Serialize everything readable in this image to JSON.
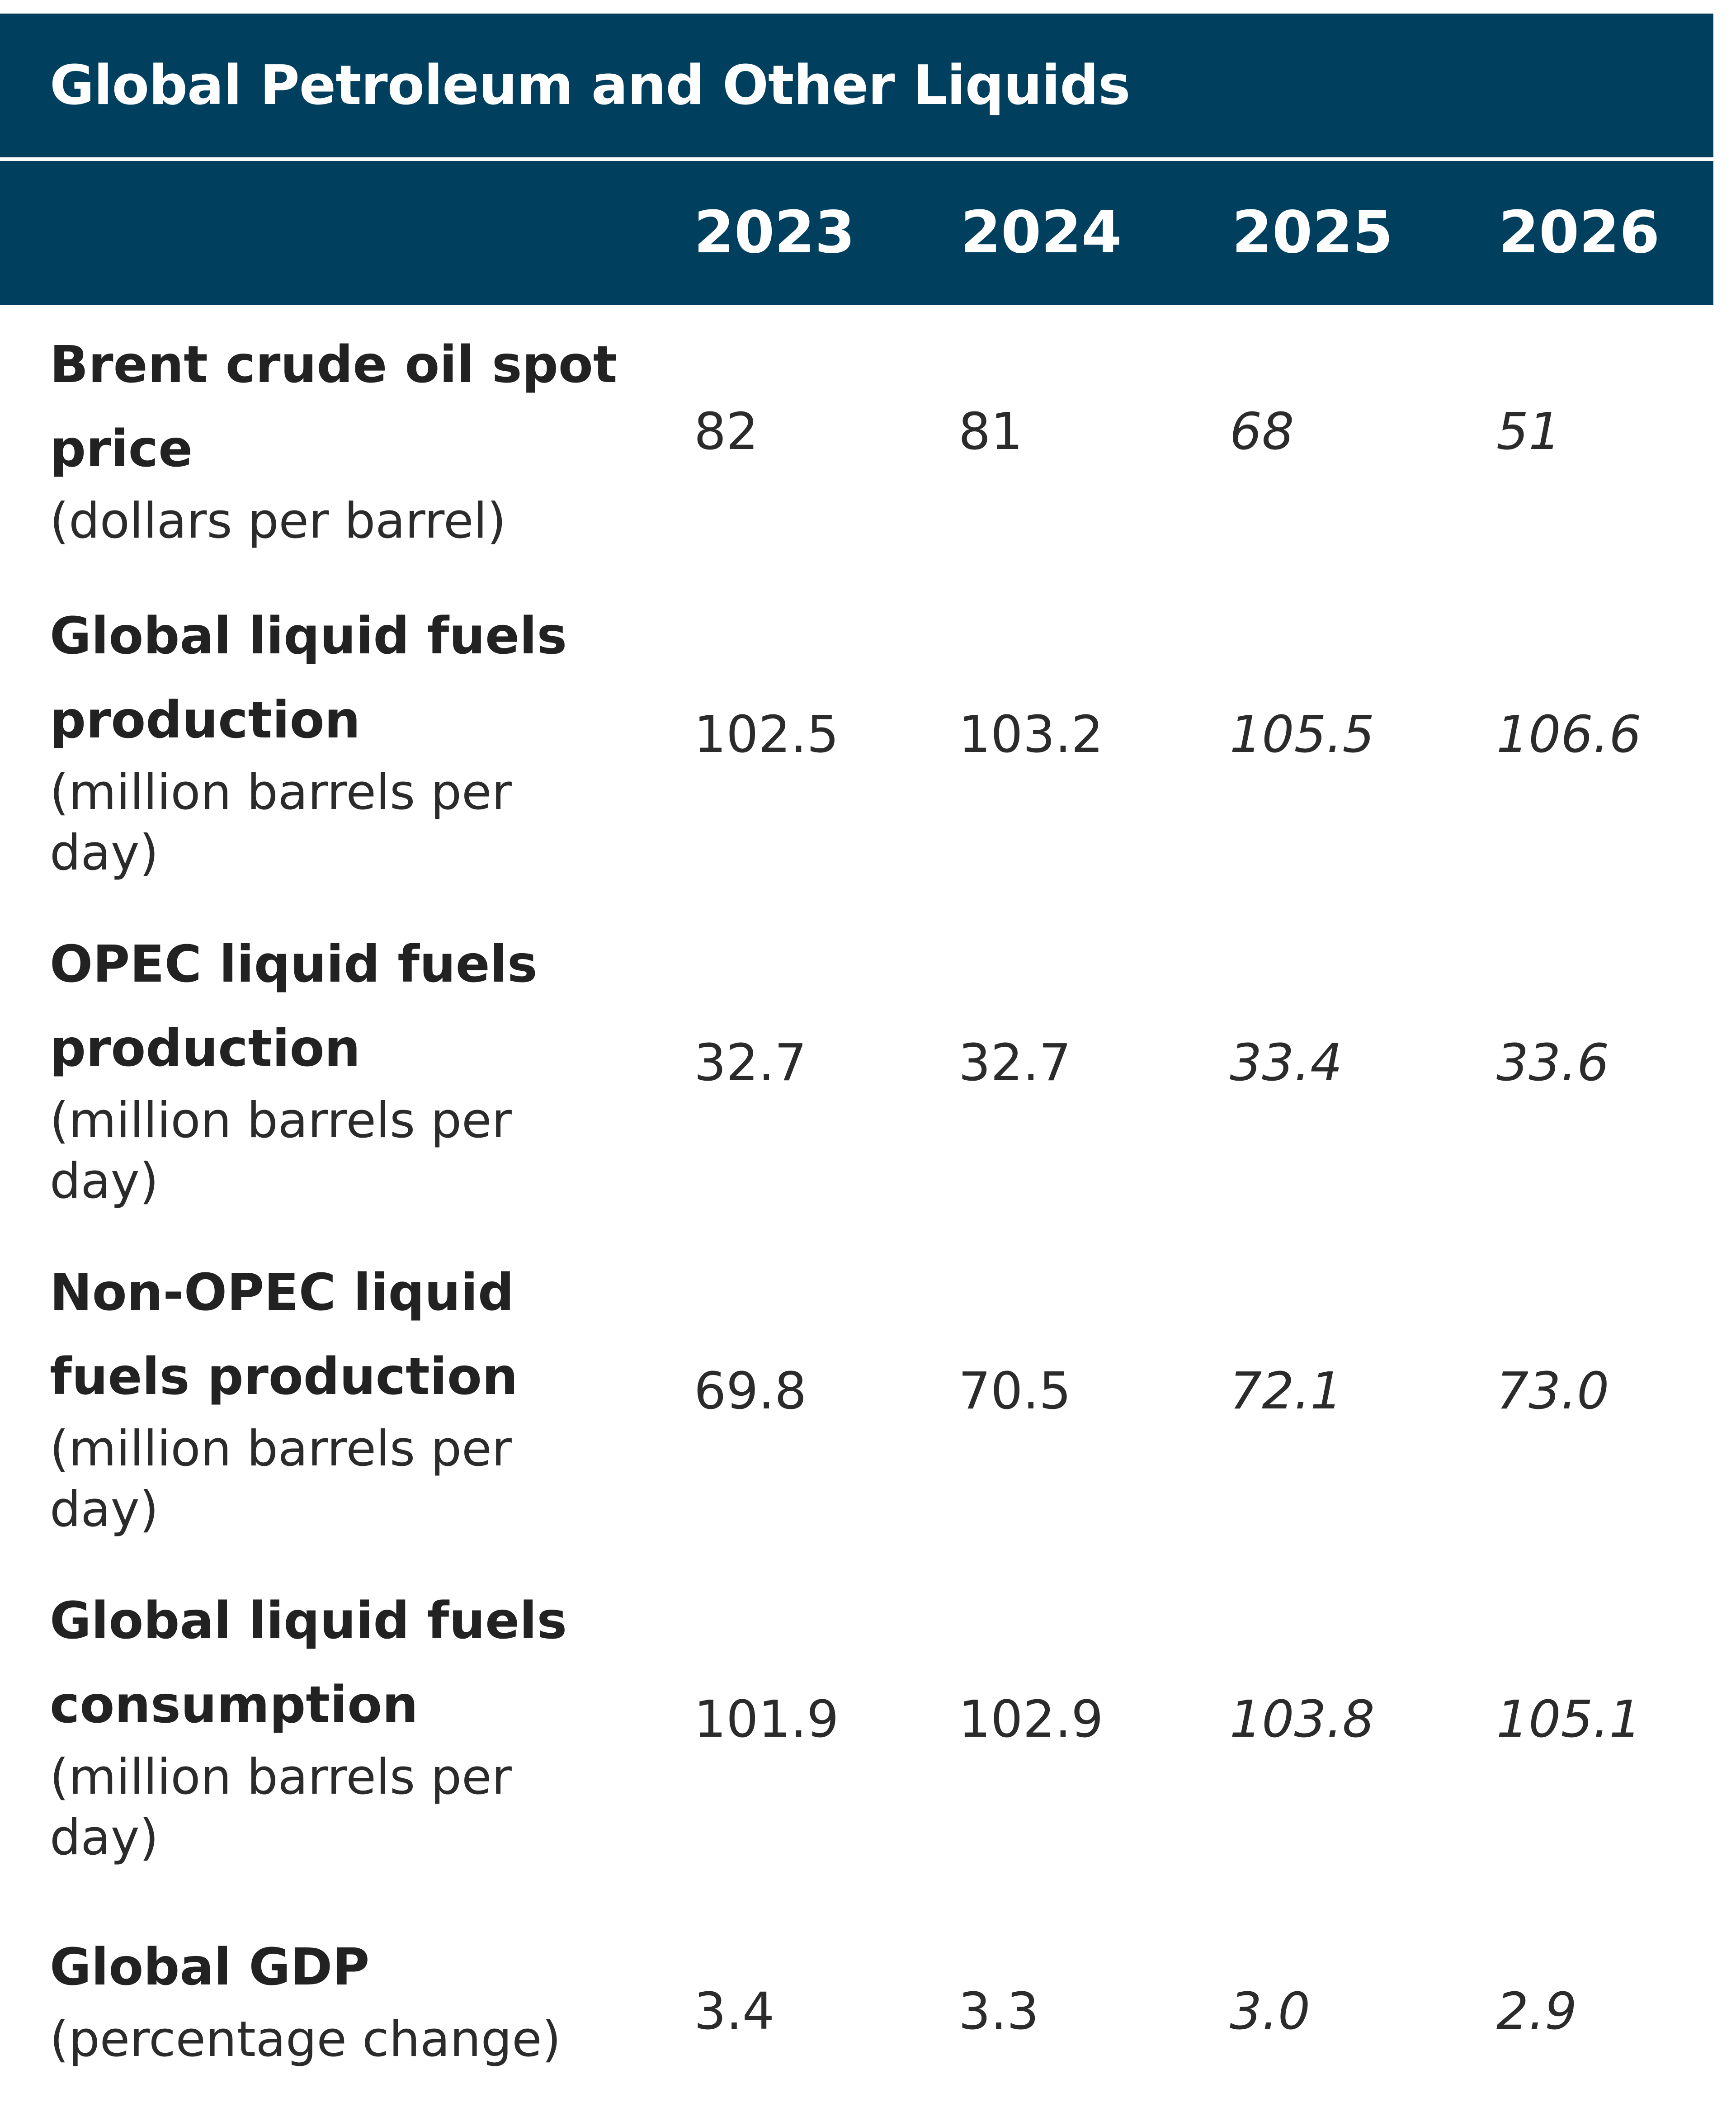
{
  "title": "Global Petroleum and Other Liquids",
  "years": [
    "2023",
    "2024",
    "2025",
    "2026"
  ],
  "rows": [
    {
      "label_lines": [
        "Brent crude oil spot",
        "price"
      ],
      "unit_lines": [
        "(dollars per barrel)"
      ],
      "values": [
        "82",
        "81",
        "68",
        "51"
      ]
    },
    {
      "label_lines": [
        "Global liquid fuels",
        "production"
      ],
      "unit_lines": [
        "(million barrels per",
        "day)"
      ],
      "values": [
        "102.5",
        "103.2",
        "105.5",
        "106.6"
      ]
    },
    {
      "label_lines": [
        "OPEC liquid fuels",
        "production"
      ],
      "unit_lines": [
        "(million barrels per",
        "day)"
      ],
      "values": [
        "32.7",
        "32.7",
        "33.4",
        "33.6"
      ]
    },
    {
      "label_lines": [
        "Non-OPEC liquid",
        "fuels production"
      ],
      "unit_lines": [
        "(million barrels per",
        "day)"
      ],
      "values": [
        "69.8",
        "70.5",
        "72.1",
        "73.0"
      ]
    },
    {
      "label_lines": [
        "Global liquid fuels",
        "consumption"
      ],
      "unit_lines": [
        "(million barrels per",
        "day)"
      ],
      "values": [
        "101.9",
        "102.9",
        "103.8",
        "105.1"
      ]
    },
    {
      "label_lines": [
        "Global GDP"
      ],
      "unit_lines": [
        "(percentage change)"
      ],
      "values": [
        "3.4",
        "3.3",
        "3.0",
        "2.9"
      ]
    }
  ],
  "colors": {
    "header_bg": "#00405e",
    "header_text": "#ffffff",
    "body_text": "#2b2b2b"
  }
}
